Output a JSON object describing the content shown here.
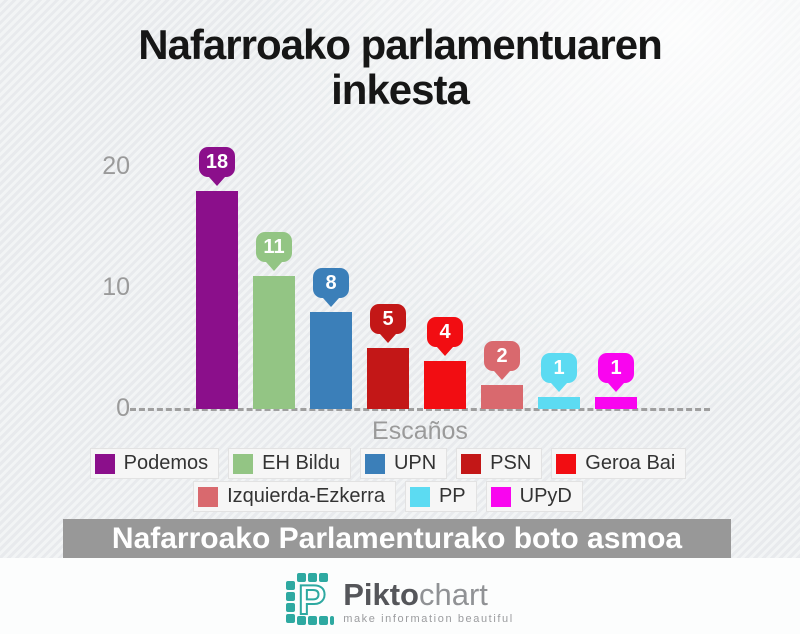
{
  "title": "Nafarroako parlamentuaren inkesta",
  "chart_data": {
    "type": "bar",
    "categories": [
      "Podemos",
      "EH Bildu",
      "UPN",
      "PSN",
      "Geroa Bai",
      "Izquierda-Ezkerra",
      "PP",
      "UPyD"
    ],
    "values": [
      18,
      11,
      8,
      5,
      4,
      2,
      1,
      1
    ],
    "colors": [
      "#8b0f8b",
      "#93c584",
      "#3b7fb9",
      "#c31717",
      "#f20d12",
      "#d9696e",
      "#5cdbf2",
      "#f905ef"
    ],
    "title": "Nafarroako parlamentuaren inkesta",
    "xlabel": "Escaños",
    "ylabel": "",
    "yticks": [
      0,
      10,
      20
    ],
    "ylim": [
      0,
      21
    ],
    "grid": "dashed-baseline-only",
    "value_labels": "bubbles-above-bars",
    "legend_position": "bottom",
    "legend_rows": [
      5,
      3
    ]
  },
  "banner": {
    "text": "Nafarroako Parlamenturako boto asmoa",
    "bg_color": "#989898",
    "text_color": "#ffffff"
  },
  "footer": {
    "logo": {
      "icon": "piktochart-p-icon",
      "brand_color": "#2ea9a1",
      "name_bold": "Pikto",
      "name_light": "chart",
      "tagline": "make information beautiful"
    }
  }
}
